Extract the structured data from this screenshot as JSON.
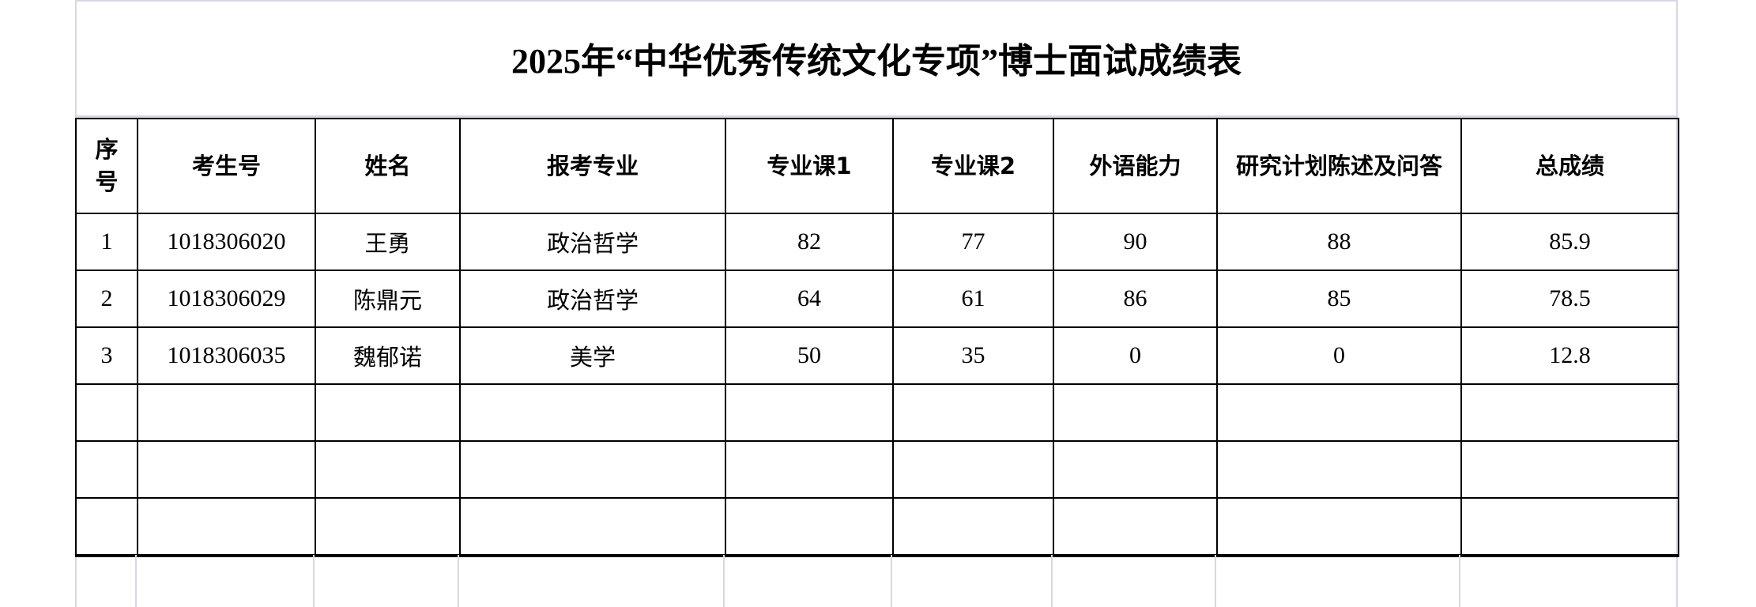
{
  "title": "2025年“中华优秀传统文化专项”博士面试成绩表",
  "headers": [
    "序号",
    "考生号",
    "姓名",
    "报考专业",
    "专业课1",
    "专业课2",
    "外语能力",
    "研究计划陈述及问答",
    "总成绩"
  ],
  "rows": [
    [
      "1",
      "1018306020",
      "王勇",
      "政治哲学",
      "82",
      "77",
      "90",
      "88",
      "85.9"
    ],
    [
      "2",
      "1018306029",
      "陈鼎元",
      "政治哲学",
      "64",
      "61",
      "86",
      "85",
      "78.5"
    ],
    [
      "3",
      "1018306035",
      "魏郁诺",
      "美学",
      "50",
      "35",
      "0",
      "0",
      "12.8"
    ],
    [
      "",
      "",
      "",
      "",
      "",
      "",
      "",
      "",
      ""
    ],
    [
      "",
      "",
      "",
      "",
      "",
      "",
      "",
      "",
      ""
    ],
    [
      "",
      "",
      "",
      "",
      "",
      "",
      "",
      "",
      ""
    ]
  ]
}
